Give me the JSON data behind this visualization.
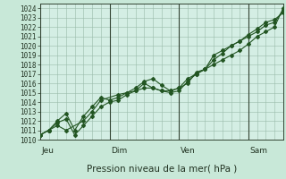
{
  "xlabel": "Pression niveau de la mer( hPa )",
  "background_color": "#c8e8d8",
  "plot_bg_color": "#d4eee4",
  "grid_color": "#99bbaa",
  "line_color": "#225522",
  "marker_color": "#225522",
  "ylim": [
    1010,
    1024.5
  ],
  "yticks": [
    1010,
    1011,
    1012,
    1013,
    1014,
    1015,
    1016,
    1017,
    1018,
    1019,
    1020,
    1021,
    1022,
    1023,
    1024
  ],
  "day_labels": [
    "Jeu",
    "Dim",
    "Ven",
    "Sam"
  ],
  "total_hours": 168,
  "line1_x": [
    0,
    6,
    12,
    18,
    30,
    36,
    42,
    54,
    60,
    66,
    72,
    78,
    84,
    90,
    96,
    102,
    108,
    114,
    120,
    126,
    132,
    138,
    144,
    150,
    156,
    162,
    168
  ],
  "line1_y": [
    1010.5,
    1011.0,
    1011.5,
    1011.0,
    1012.0,
    1013.0,
    1014.2,
    1014.8,
    1015.0,
    1015.2,
    1016.0,
    1015.5,
    1015.2,
    1015.2,
    1015.5,
    1016.5,
    1017.0,
    1017.5,
    1018.0,
    1018.5,
    1019.0,
    1019.5,
    1020.2,
    1021.0,
    1021.5,
    1022.0,
    1024.0
  ],
  "line2_x": [
    0,
    6,
    12,
    18,
    24,
    30,
    36,
    42,
    48,
    54,
    60,
    66,
    72,
    78,
    84,
    90,
    96,
    102,
    108,
    114,
    120,
    126,
    132,
    138,
    144,
    150,
    156,
    162,
    168
  ],
  "line2_y": [
    1010.5,
    1011.0,
    1012.0,
    1012.8,
    1011.0,
    1012.5,
    1013.5,
    1014.5,
    1014.2,
    1014.5,
    1015.0,
    1015.5,
    1016.2,
    1016.5,
    1015.8,
    1015.2,
    1015.5,
    1016.0,
    1017.2,
    1017.5,
    1019.0,
    1019.5,
    1020.0,
    1020.5,
    1021.2,
    1021.8,
    1022.5,
    1022.8,
    1023.5
  ],
  "line3_x": [
    0,
    6,
    12,
    18,
    24,
    30,
    36,
    42,
    48,
    54,
    60,
    66,
    72,
    78,
    84,
    90,
    96,
    102,
    108,
    114,
    120,
    126,
    132,
    138,
    144,
    150,
    156,
    162,
    168
  ],
  "line3_y": [
    1010.5,
    1011.0,
    1011.8,
    1012.2,
    1010.5,
    1011.5,
    1012.5,
    1013.5,
    1014.0,
    1014.2,
    1014.8,
    1015.2,
    1015.5,
    1015.5,
    1015.2,
    1015.0,
    1015.2,
    1016.2,
    1017.0,
    1017.5,
    1018.5,
    1019.2,
    1020.0,
    1020.5,
    1021.0,
    1021.5,
    1022.2,
    1022.5,
    1023.8
  ]
}
